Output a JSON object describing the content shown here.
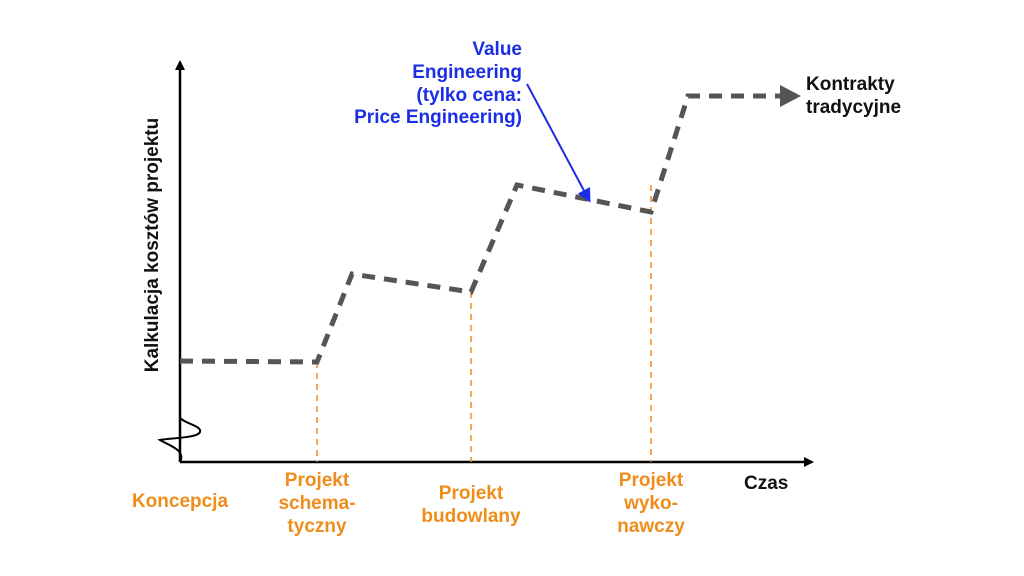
{
  "y_axis_label": "Kalkulacja kosztów projektu",
  "x_axis_label": "Czas",
  "end_label": {
    "line1": "Kontrakty",
    "line2": "tradycyjne"
  },
  "annotation": {
    "line1": "Value",
    "line2": "Engineering",
    "line3": "(tylko cena:",
    "line4": "Price Engineering)"
  },
  "phases": {
    "p0": {
      "line1": "Koncepcja"
    },
    "p1": {
      "line1": "Projekt",
      "line2": "schema-",
      "line3": "tyczny"
    },
    "p2": {
      "line1": "Projekt",
      "line2": "budowlany"
    },
    "p3": {
      "line1": "Projekt",
      "line2": "wyko-",
      "line3": "nawczy"
    }
  },
  "colors": {
    "phase_text": "#f08c1a",
    "annotation_text": "#1b2ee6",
    "cost_line": "#555555",
    "axis": "#000000"
  }
}
